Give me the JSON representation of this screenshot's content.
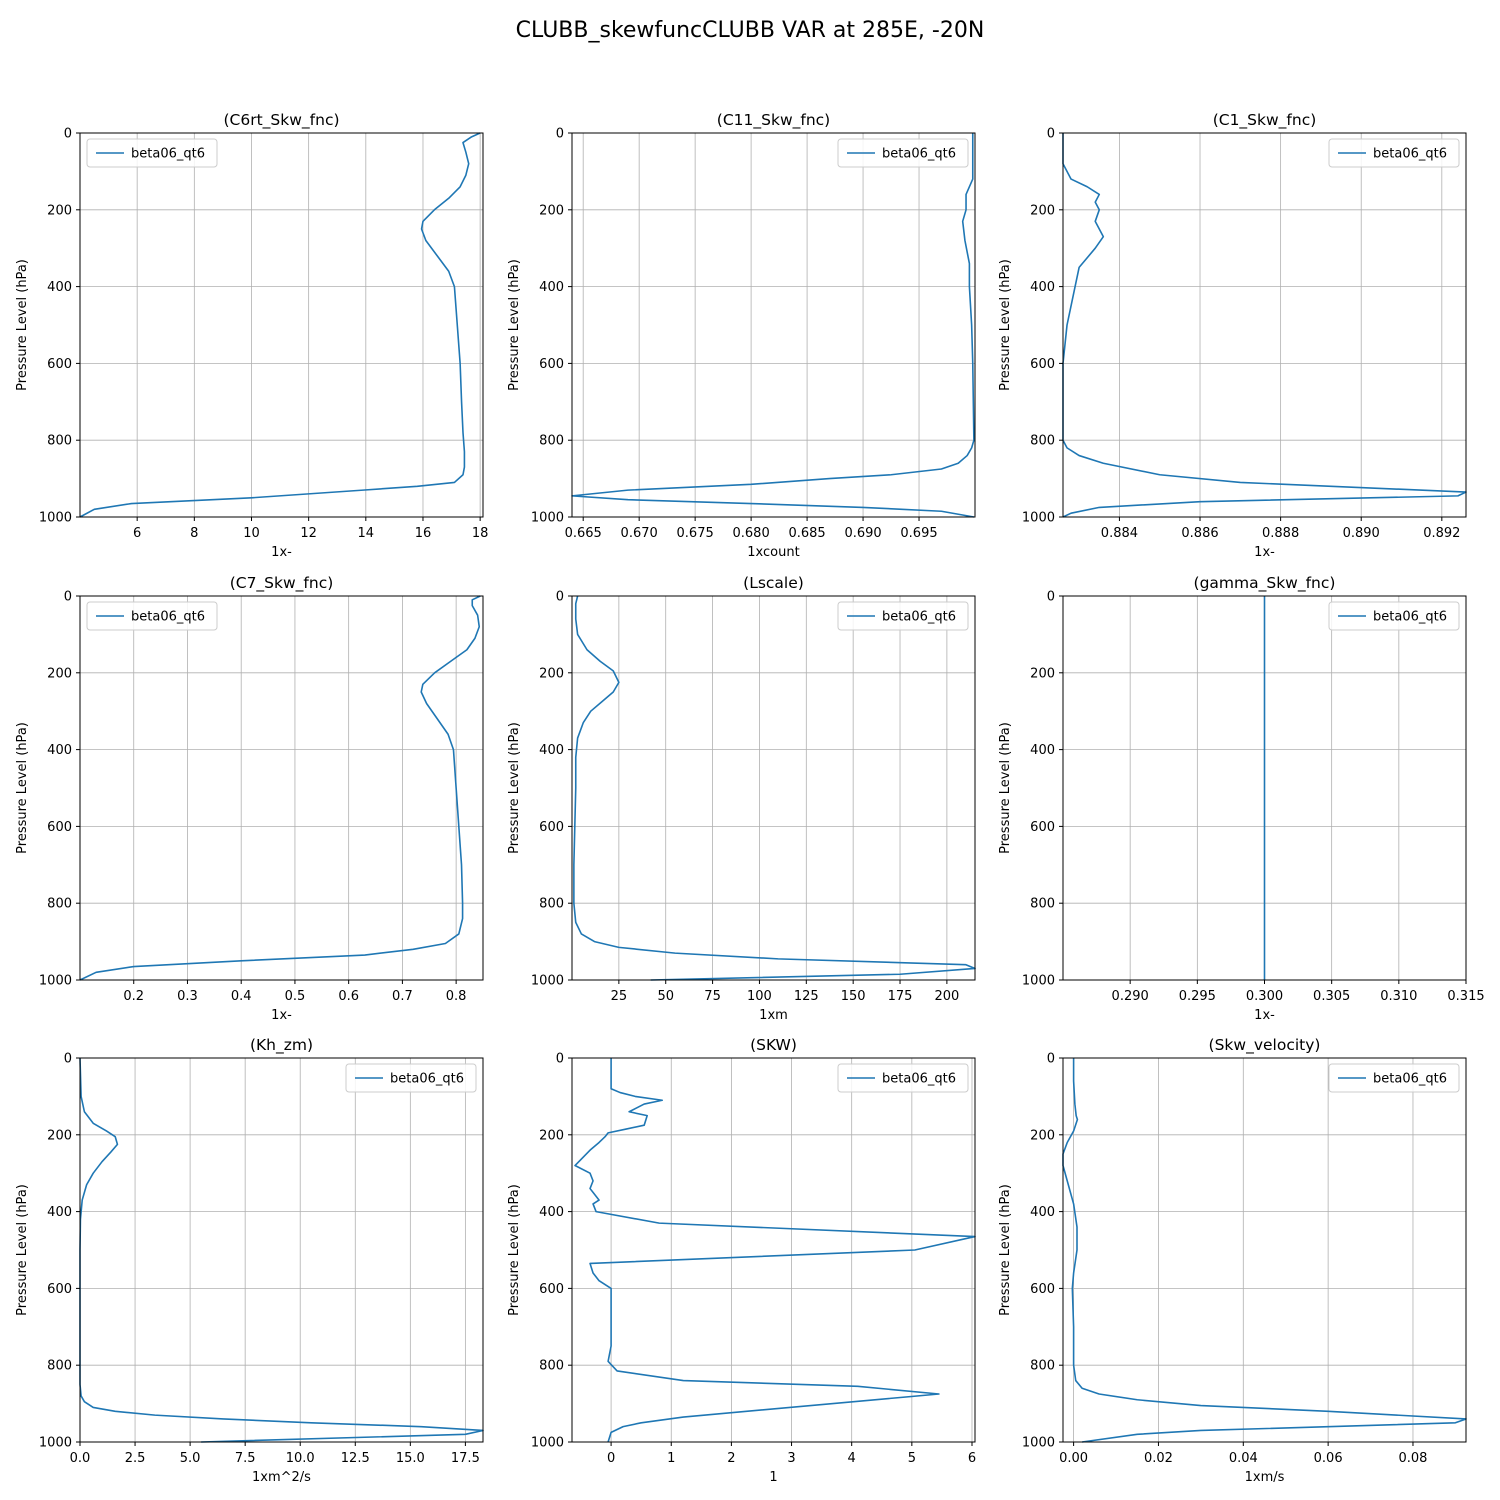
{
  "figure": {
    "suptitle": "CLUBB_skewfuncCLUBB VAR at 285E, -20N",
    "colors": {
      "line": "#1f77b4",
      "grid": "#b0b0b0",
      "legend_border": "#cccccc"
    }
  },
  "chart_data": [
    {
      "type": "line",
      "title": "(C6rt_Skw_fnc)",
      "xlabel": "1x-",
      "ylabel": "Pressure Level (hPa)",
      "xlim": [
        4.0,
        18.1
      ],
      "ylim": [
        1000,
        0
      ],
      "y_inverted": true,
      "xticks": [
        6,
        8,
        10,
        12,
        14,
        16,
        18
      ],
      "xtick_labels": [
        "6",
        "8",
        "10",
        "12",
        "14",
        "16",
        "18"
      ],
      "yticks": [
        0,
        200,
        400,
        600,
        800,
        1000
      ],
      "ytick_labels": [
        "0",
        "200",
        "400",
        "600",
        "800",
        "1000"
      ],
      "grid": true,
      "legend_loc": "upper left",
      "series": [
        {
          "name": "beta06_qt6",
          "x": [
            18.0,
            17.7,
            17.4,
            17.5,
            17.6,
            17.5,
            17.3,
            16.9,
            16.4,
            16.0,
            15.95,
            16.1,
            16.5,
            16.9,
            17.1,
            17.2,
            17.3,
            17.35,
            17.4,
            17.45,
            17.45,
            17.4,
            17.1,
            15.8,
            13.9,
            10.0,
            5.8,
            4.5,
            4.0
          ],
          "y": [
            0,
            10,
            25,
            50,
            80,
            110,
            140,
            170,
            200,
            230,
            250,
            280,
            320,
            360,
            400,
            500,
            600,
            700,
            780,
            830,
            870,
            890,
            910,
            920,
            930,
            950,
            965,
            980,
            1000
          ]
        }
      ]
    },
    {
      "type": "line",
      "title": "(C11_Skw_fnc)",
      "xlabel": "1xcount",
      "ylabel": "Pressure Level (hPa)",
      "xlim": [
        0.664,
        0.7
      ],
      "ylim": [
        1000,
        0
      ],
      "y_inverted": true,
      "xticks": [
        0.665,
        0.67,
        0.675,
        0.68,
        0.685,
        0.69,
        0.695
      ],
      "xtick_labels": [
        "0.665",
        "0.670",
        "0.675",
        "0.680",
        "0.685",
        "0.690",
        "0.695"
      ],
      "yticks": [
        0,
        200,
        400,
        600,
        800,
        1000
      ],
      "ytick_labels": [
        "0",
        "200",
        "400",
        "600",
        "800",
        "1000"
      ],
      "grid": true,
      "legend_loc": "upper right",
      "series": [
        {
          "name": "beta06_qt6",
          "x": [
            0.6998,
            0.6998,
            0.6998,
            0.6992,
            0.6992,
            0.6992,
            0.6989,
            0.6991,
            0.6995,
            0.6995,
            0.6996,
            0.6997,
            0.6998,
            0.6999,
            0.6997,
            0.6993,
            0.6985,
            0.697,
            0.6925,
            0.687,
            0.68,
            0.669,
            0.664,
            0.669,
            0.68,
            0.69,
            0.697,
            0.6999
          ],
          "y": [
            0,
            60,
            120,
            160,
            180,
            200,
            230,
            280,
            340,
            400,
            450,
            500,
            600,
            800,
            820,
            840,
            860,
            875,
            890,
            900,
            915,
            930,
            945,
            955,
            965,
            975,
            985,
            1000
          ]
        }
      ]
    },
    {
      "type": "line",
      "title": "(C1_Skw_fnc)",
      "xlabel": "1x-",
      "ylabel": "Pressure Level (hPa)",
      "xlim": [
        0.8826,
        0.8926
      ],
      "ylim": [
        1000,
        0
      ],
      "y_inverted": true,
      "xticks": [
        0.884,
        0.886,
        0.888,
        0.89,
        0.892
      ],
      "xtick_labels": [
        "0.884",
        "0.886",
        "0.888",
        "0.890",
        "0.892"
      ],
      "yticks": [
        0,
        200,
        400,
        600,
        800,
        1000
      ],
      "ytick_labels": [
        "0",
        "200",
        "400",
        "600",
        "800",
        "1000"
      ],
      "grid": true,
      "legend_loc": "upper right",
      "series": [
        {
          "name": "beta06_qt6",
          "x": [
            0.8826,
            0.8826,
            0.8828,
            0.8832,
            0.8835,
            0.8834,
            0.8835,
            0.8834,
            0.8836,
            0.8834,
            0.883,
            0.8829,
            0.8828,
            0.8827,
            0.8826,
            0.8826,
            0.8826,
            0.8827,
            0.883,
            0.8836,
            0.885,
            0.887,
            0.8926,
            0.8924,
            0.886,
            0.8835,
            0.8828,
            0.8826
          ],
          "y": [
            0,
            80,
            120,
            140,
            160,
            180,
            200,
            230,
            270,
            300,
            350,
            400,
            450,
            500,
            600,
            700,
            800,
            820,
            840,
            860,
            890,
            910,
            935,
            945,
            960,
            975,
            990,
            1000
          ]
        }
      ]
    },
    {
      "type": "line",
      "title": "(C7_Skw_fnc)",
      "xlabel": "1x-",
      "ylabel": "Pressure Level (hPa)",
      "xlim": [
        0.1,
        0.85
      ],
      "ylim": [
        1000,
        0
      ],
      "y_inverted": true,
      "xticks": [
        0.2,
        0.3,
        0.4,
        0.5,
        0.6,
        0.7,
        0.8
      ],
      "xtick_labels": [
        "0.2",
        "0.3",
        "0.4",
        "0.5",
        "0.6",
        "0.7",
        "0.8"
      ],
      "yticks": [
        0,
        200,
        400,
        600,
        800,
        1000
      ],
      "ytick_labels": [
        "0",
        "200",
        "400",
        "600",
        "800",
        "1000"
      ],
      "grid": true,
      "legend_loc": "upper left",
      "series": [
        {
          "name": "beta06_qt6",
          "x": [
            0.845,
            0.83,
            0.83,
            0.84,
            0.843,
            0.835,
            0.82,
            0.79,
            0.76,
            0.738,
            0.735,
            0.745,
            0.765,
            0.785,
            0.795,
            0.8,
            0.805,
            0.81,
            0.812,
            0.812,
            0.805,
            0.78,
            0.72,
            0.63,
            0.4,
            0.2,
            0.13,
            0.1
          ],
          "y": [
            0,
            10,
            25,
            50,
            80,
            110,
            140,
            170,
            200,
            230,
            250,
            280,
            320,
            360,
            400,
            500,
            600,
            700,
            800,
            840,
            880,
            905,
            920,
            935,
            950,
            965,
            980,
            1000
          ]
        }
      ]
    },
    {
      "type": "line",
      "title": "(Lscale)",
      "xlabel": "1xm",
      "ylabel": "Pressure Level (hPa)",
      "xlim": [
        0,
        215
      ],
      "ylim": [
        1000,
        0
      ],
      "y_inverted": true,
      "xticks": [
        25,
        50,
        75,
        100,
        125,
        150,
        175,
        200
      ],
      "xtick_labels": [
        "25",
        "50",
        "75",
        "100",
        "125",
        "150",
        "175",
        "200"
      ],
      "yticks": [
        0,
        200,
        400,
        600,
        800,
        1000
      ],
      "ytick_labels": [
        "0",
        "200",
        "400",
        "600",
        "800",
        "1000"
      ],
      "grid": true,
      "legend_loc": "upper right",
      "series": [
        {
          "name": "beta06_qt6",
          "x": [
            3,
            2,
            2,
            3,
            8,
            15,
            22,
            25,
            22,
            16,
            10,
            6,
            3,
            2,
            2,
            1.5,
            1,
            1,
            2,
            5,
            12,
            25,
            55,
            110,
            210,
            215,
            175,
            42
          ],
          "y": [
            0,
            20,
            60,
            100,
            140,
            170,
            195,
            225,
            250,
            275,
            300,
            330,
            370,
            420,
            500,
            600,
            700,
            800,
            850,
            880,
            900,
            915,
            930,
            945,
            960,
            970,
            985,
            1000
          ]
        }
      ]
    },
    {
      "type": "line",
      "title": "(gamma_Skw_fnc)",
      "xlabel": "1x-",
      "ylabel": "Pressure Level (hPa)",
      "xlim": [
        0.285,
        0.315
      ],
      "ylim": [
        1000,
        0
      ],
      "y_inverted": true,
      "xticks": [
        0.29,
        0.295,
        0.3,
        0.305,
        0.31,
        0.315
      ],
      "xtick_labels": [
        "0.290",
        "0.295",
        "0.300",
        "0.305",
        "0.310",
        "0.315"
      ],
      "yticks": [
        0,
        200,
        400,
        600,
        800,
        1000
      ],
      "ytick_labels": [
        "0",
        "200",
        "400",
        "600",
        "800",
        "1000"
      ],
      "grid": true,
      "legend_loc": "upper right",
      "series": [
        {
          "name": "beta06_qt6",
          "x": [
            0.3,
            0.3
          ],
          "y": [
            0,
            1000
          ]
        }
      ]
    },
    {
      "type": "line",
      "title": "(Kh_zm)",
      "xlabel": "1xm^2/s",
      "ylabel": "Pressure Level (hPa)",
      "xlim": [
        0,
        18.3
      ],
      "ylim": [
        1000,
        0
      ],
      "y_inverted": true,
      "xticks": [
        0,
        2.5,
        5,
        7.5,
        10,
        12.5,
        15,
        17.5
      ],
      "xtick_labels": [
        "0.0",
        "2.5",
        "5.0",
        "7.5",
        "10.0",
        "12.5",
        "15.0",
        "17.5"
      ],
      "yticks": [
        0,
        200,
        400,
        600,
        800,
        1000
      ],
      "ytick_labels": [
        "0",
        "200",
        "400",
        "600",
        "800",
        "1000"
      ],
      "grid": true,
      "legend_loc": "upper right",
      "series": [
        {
          "name": "beta06_qt6",
          "x": [
            0,
            0.05,
            0.2,
            0.6,
            1.2,
            1.6,
            1.7,
            1.4,
            1.0,
            0.6,
            0.3,
            0.1,
            0.02,
            0,
            0,
            0,
            0.05,
            0.2,
            0.6,
            1.6,
            3.4,
            6.5,
            10.5,
            15.5,
            18.3,
            17.5,
            5.5
          ],
          "y": [
            0,
            100,
            140,
            170,
            190,
            205,
            225,
            245,
            270,
            300,
            330,
            370,
            420,
            500,
            700,
            850,
            880,
            895,
            910,
            920,
            930,
            940,
            950,
            960,
            970,
            980,
            1000
          ]
        }
      ]
    },
    {
      "type": "line",
      "title": "(SKW)",
      "xlabel": "1",
      "ylabel": "Pressure Level (hPa)",
      "xlim": [
        -0.65,
        6.05
      ],
      "ylim": [
        1000,
        0
      ],
      "y_inverted": true,
      "xticks": [
        0,
        1,
        2,
        3,
        4,
        5,
        6
      ],
      "xtick_labels": [
        "0",
        "1",
        "2",
        "3",
        "4",
        "5",
        "6"
      ],
      "yticks": [
        0,
        200,
        400,
        600,
        800,
        1000
      ],
      "ytick_labels": [
        "0",
        "200",
        "400",
        "600",
        "800",
        "1000"
      ],
      "grid": true,
      "legend_loc": "upper right",
      "series": [
        {
          "name": "beta06_qt6",
          "x": [
            0,
            0,
            0.15,
            0.4,
            0.85,
            0.55,
            0.3,
            0.6,
            0.55,
            0.25,
            -0.05,
            -0.1,
            -0.2,
            -0.35,
            -0.6,
            -0.35,
            -0.3,
            -0.35,
            -0.3,
            -0.2,
            -0.3,
            -0.25,
            0.8,
            6.05,
            5.05,
            -0.35,
            -0.3,
            -0.2,
            0,
            0,
            0,
            -0.05,
            0.1,
            1.2,
            4.1,
            5.45,
            1.2,
            0.5,
            0.2,
            0,
            -0.05
          ],
          "y": [
            0,
            80,
            90,
            100,
            110,
            120,
            140,
            150,
            175,
            185,
            195,
            205,
            220,
            240,
            280,
            300,
            320,
            340,
            350,
            370,
            380,
            400,
            430,
            465,
            500,
            535,
            560,
            580,
            600,
            650,
            750,
            790,
            815,
            840,
            855,
            875,
            935,
            950,
            960,
            975,
            1000
          ]
        }
      ]
    },
    {
      "type": "line",
      "title": "(Skw_velocity)",
      "xlabel": "1xm/s",
      "ylabel": "Pressure Level (hPa)",
      "xlim": [
        -0.0025,
        0.0925
      ],
      "ylim": [
        1000,
        0
      ],
      "y_inverted": true,
      "xticks": [
        0,
        0.02,
        0.04,
        0.06,
        0.08
      ],
      "xtick_labels": [
        "0.00",
        "0.02",
        "0.04",
        "0.06",
        "0.08"
      ],
      "yticks": [
        0,
        200,
        400,
        600,
        800,
        1000
      ],
      "ytick_labels": [
        "0",
        "200",
        "400",
        "600",
        "800",
        "1000"
      ],
      "grid": true,
      "legend_loc": "upper right",
      "series": [
        {
          "name": "beta06_qt6",
          "x": [
            0.0,
            0.0,
            0.0003,
            0.0005,
            0.0006,
            0.0009,
            0.0,
            -0.0015,
            -0.0025,
            -0.0025,
            -0.0015,
            0.0,
            0.0008,
            0.0008,
            0.0,
            -0.0003,
            0.0,
            0.0,
            0.0005,
            0.002,
            0.006,
            0.015,
            0.03,
            0.06,
            0.0925,
            0.09,
            0.03,
            0.015,
            0.002
          ],
          "y": [
            0,
            60,
            120,
            140,
            150,
            160,
            190,
            220,
            250,
            280,
            320,
            380,
            440,
            500,
            560,
            600,
            700,
            800,
            840,
            860,
            875,
            890,
            905,
            920,
            940,
            950,
            970,
            980,
            1000
          ]
        }
      ]
    }
  ]
}
